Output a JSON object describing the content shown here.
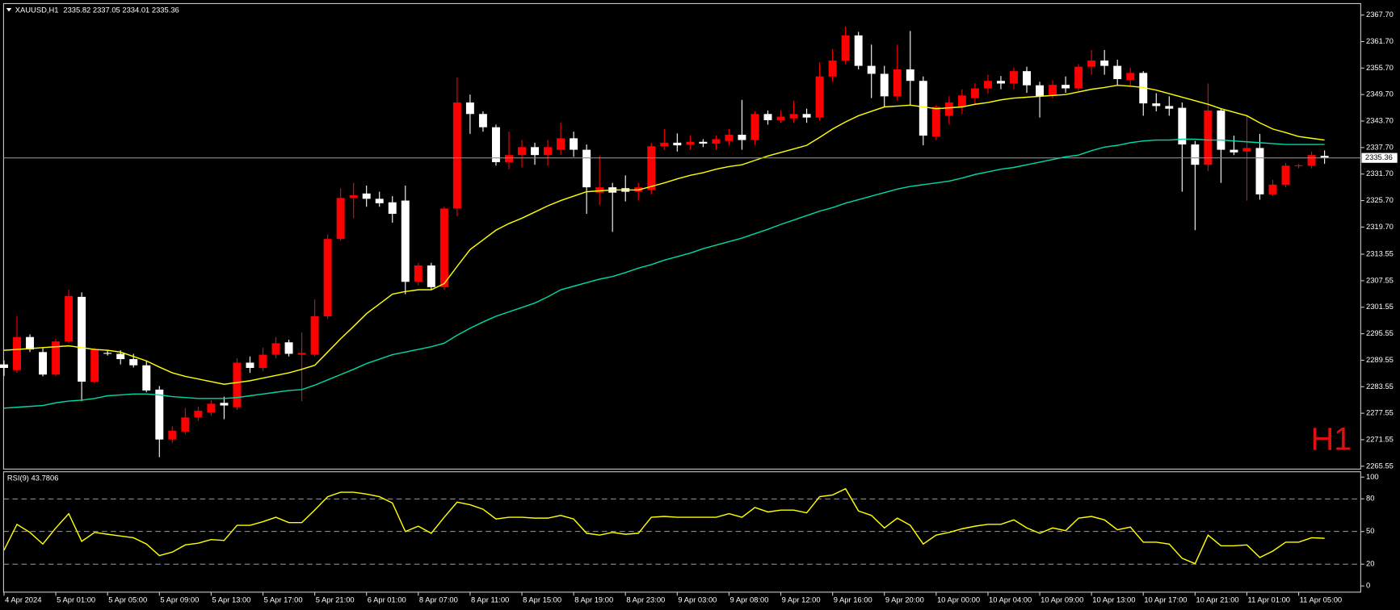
{
  "chart_data": [
    {
      "type": "candlestick",
      "title": "XAUUSD,H1",
      "timeframe": "H1",
      "categories": [
        "4 Apr 2024",
        null,
        null,
        null,
        "5 Apr 01:00",
        null,
        null,
        null,
        "5 Apr 05:00",
        null,
        null,
        null,
        "5 Apr 09:00",
        null,
        null,
        null,
        "5 Apr 13:00",
        null,
        null,
        null,
        "5 Apr 17:00",
        null,
        null,
        null,
        "5 Apr 21:00",
        null,
        null,
        null,
        "6 Apr 01:00",
        null,
        null,
        null,
        "8 Apr 07:00",
        null,
        null,
        null,
        "8 Apr 11:00",
        null,
        null,
        null,
        "8 Apr 15:00",
        null,
        null,
        null,
        "8 Apr 19:00",
        null,
        null,
        null,
        "8 Apr 23:00",
        null,
        null,
        null,
        "9 Apr 03:00",
        null,
        null,
        null,
        "9 Apr 08:00",
        null,
        null,
        null,
        "9 Apr 12:00",
        null,
        null,
        null,
        "9 Apr 16:00",
        null,
        null,
        null,
        "9 Apr 20:00",
        null,
        null,
        null,
        "10 Apr 00:00",
        null,
        null,
        null,
        "10 Apr 04:00",
        null,
        null,
        null,
        "10 Apr 09:00",
        null,
        null,
        null,
        "10 Apr 13:00",
        null,
        null,
        null,
        "10 Apr 17:00",
        null,
        null,
        null,
        "10 Apr 21:00",
        null,
        null,
        null,
        "11 Apr 01:00",
        null,
        null,
        null,
        "11 Apr 05:00",
        null,
        null
      ],
      "open": [
        2288.6,
        2287.3,
        2294.8,
        2291.4,
        2286.3,
        2293.8,
        2303.9,
        2284.7,
        2291.2,
        2291.0,
        2289.8,
        2288.4,
        2282.9,
        2271.6,
        2273.4,
        2276.6,
        2277.7,
        2279.9,
        2278.9,
        2289.0,
        2287.8,
        2290.8,
        2293.6,
        2290.8,
        2290.8,
        2299.5,
        2317.0,
        2326.3,
        2327.3,
        2326.1,
        2325.3,
        2325.7,
        2307.3,
        2311.0,
        2306.1,
        2323.9,
        2347.9,
        2345.3,
        2342.3,
        2334.4,
        2336.0,
        2337.8,
        2336.0,
        2337.2,
        2339.8,
        2337.2,
        2327.5,
        2328.7,
        2328.5,
        2327.7,
        2328.1,
        2338.0,
        2338.8,
        2338.4,
        2339.0,
        2338.6,
        2339.2,
        2340.6,
        2339.4,
        2345.3,
        2343.9,
        2344.3,
        2345.3,
        2344.5,
        2353.8,
        2357.4,
        2363.1,
        2356.2,
        2354.4,
        2349.3,
        2355.4,
        2352.8,
        2340.2,
        2344.9,
        2346.9,
        2348.9,
        2351.1,
        2352.8,
        2352.2,
        2355.0,
        2351.8,
        2349.5,
        2351.9,
        2351.1,
        2356.0,
        2357.4,
        2356.2,
        2353.0,
        2354.6,
        2347.7,
        2347.1,
        2346.7,
        2338.4,
        2333.8,
        2346.1,
        2337.2,
        2336.8,
        2337.6,
        2327.1,
        2329.3,
        2333.6,
        2333.6,
        2335.82
      ],
      "high": [
        2289.5,
        2299.5,
        2295.4,
        2292.4,
        2294.4,
        2305.5,
        2304.9,
        2292.4,
        2291.8,
        2291.8,
        2291.0,
        2289.4,
        2283.7,
        2274.6,
        2278.7,
        2279.1,
        2280.5,
        2281.3,
        2290.0,
        2290.4,
        2292.4,
        2294.8,
        2294.2,
        2295.8,
        2303.3,
        2318.0,
        2328.5,
        2329.7,
        2329.1,
        2327.7,
        2326.7,
        2329.1,
        2311.6,
        2311.6,
        2324.3,
        2353.6,
        2349.7,
        2345.9,
        2342.9,
        2341.3,
        2339.4,
        2338.8,
        2339.4,
        2343.3,
        2341.3,
        2338.4,
        2335.8,
        2329.7,
        2331.4,
        2329.7,
        2338.8,
        2341.9,
        2340.9,
        2340.4,
        2339.6,
        2340.4,
        2341.9,
        2348.5,
        2345.9,
        2346.1,
        2346.1,
        2348.3,
        2346.5,
        2357.0,
        2360.0,
        2365.1,
        2363.9,
        2361.0,
        2356.2,
        2361.0,
        2364.1,
        2353.8,
        2347.3,
        2349.3,
        2350.9,
        2352.3,
        2354.2,
        2353.9,
        2355.8,
        2356.0,
        2352.6,
        2352.9,
        2353.8,
        2356.6,
        2359.8,
        2359.8,
        2357.6,
        2355.8,
        2355.0,
        2350.0,
        2349.3,
        2347.9,
        2339.2,
        2352.2,
        2346.5,
        2340.4,
        2344.9,
        2340.8,
        2330.4,
        2334.2,
        2334.0,
        2336.8,
        2337.05
      ],
      "low": [
        2286.0,
        2286.7,
        2291.4,
        2285.9,
        2285.9,
        2293.4,
        2280.3,
        2284.3,
        2290.6,
        2288.6,
        2287.9,
        2282.3,
        2267.6,
        2270.8,
        2272.8,
        2275.8,
        2277.0,
        2276.2,
        2278.3,
        2286.7,
        2287.1,
        2290.0,
        2290.4,
        2280.3,
        2290.4,
        2298.9,
        2316.6,
        2321.7,
        2324.3,
        2324.3,
        2320.7,
        2304.5,
        2306.5,
        2305.5,
        2305.5,
        2322.1,
        2340.8,
        2341.3,
        2333.6,
        2332.8,
        2333.2,
        2333.8,
        2333.6,
        2336.0,
        2335.6,
        2322.7,
        2324.7,
        2318.6,
        2325.5,
        2325.7,
        2327.1,
        2337.2,
        2336.8,
        2337.2,
        2337.8,
        2337.2,
        2338.2,
        2337.2,
        2338.4,
        2342.9,
        2343.3,
        2343.3,
        2343.3,
        2343.9,
        2352.6,
        2356.6,
        2355.4,
        2348.9,
        2346.9,
        2348.3,
        2347.3,
        2338.2,
        2339.4,
        2342.9,
        2345.3,
        2347.3,
        2349.9,
        2350.9,
        2350.9,
        2350.1,
        2344.5,
        2348.9,
        2350.1,
        2350.5,
        2354.2,
        2354.2,
        2351.9,
        2351.7,
        2344.9,
        2345.9,
        2344.9,
        2327.7,
        2319.0,
        2332.4,
        2329.7,
        2336.0,
        2325.7,
        2325.9,
        2326.7,
        2328.7,
        2333.0,
        2333.0,
        2334.01
      ],
      "close": [
        2287.8,
        2294.8,
        2292.0,
        2286.3,
        2293.8,
        2304.1,
        2284.7,
        2292.0,
        2291.0,
        2289.8,
        2288.4,
        2282.7,
        2271.6,
        2273.6,
        2276.6,
        2278.1,
        2279.7,
        2279.3,
        2289.0,
        2287.8,
        2290.8,
        2293.4,
        2291.0,
        2291.2,
        2299.5,
        2317.0,
        2326.3,
        2326.9,
        2326.1,
        2325.1,
        2322.7,
        2307.3,
        2311.0,
        2306.1,
        2323.9,
        2347.9,
        2345.3,
        2342.3,
        2334.4,
        2336.0,
        2337.8,
        2336.0,
        2337.8,
        2339.8,
        2337.2,
        2328.7,
        2328.7,
        2327.5,
        2327.7,
        2328.7,
        2338.0,
        2338.8,
        2338.2,
        2339.0,
        2338.6,
        2339.6,
        2340.6,
        2339.4,
        2345.3,
        2343.9,
        2344.7,
        2345.3,
        2344.5,
        2353.8,
        2357.4,
        2363.1,
        2356.2,
        2354.4,
        2349.3,
        2355.4,
        2352.8,
        2340.4,
        2346.9,
        2347.9,
        2349.5,
        2351.1,
        2352.8,
        2352.2,
        2355.0,
        2351.8,
        2349.3,
        2351.9,
        2351.1,
        2356.0,
        2357.4,
        2356.2,
        2353.2,
        2354.6,
        2347.7,
        2347.1,
        2346.5,
        2338.4,
        2333.8,
        2346.1,
        2337.2,
        2336.6,
        2337.6,
        2327.1,
        2329.3,
        2333.6,
        2333.7,
        2336.0,
        2335.36
      ],
      "up_color": "#ff0000",
      "down_color": "#ffffff",
      "overlays": [
        {
          "color": "#ffff00",
          "values": [
            2291.8,
            2292.0,
            2292.2,
            2292.4,
            2292.6,
            2292.8,
            2292.4,
            2292.0,
            2291.8,
            2291.4,
            2290.4,
            2289.4,
            2288.0,
            2286.7,
            2285.9,
            2285.3,
            2284.7,
            2284.1,
            2284.5,
            2284.9,
            2285.5,
            2286.1,
            2286.7,
            2287.5,
            2288.4,
            2291.4,
            2294.4,
            2297.2,
            2300.1,
            2302.3,
            2304.5,
            2305.1,
            2305.5,
            2305.5,
            2306.9,
            2310.8,
            2314.6,
            2316.8,
            2319.0,
            2320.5,
            2321.7,
            2323.1,
            2324.5,
            2325.7,
            2326.7,
            2327.7,
            2327.9,
            2328.1,
            2328.1,
            2328.1,
            2328.9,
            2329.7,
            2330.6,
            2331.4,
            2332.0,
            2332.8,
            2333.4,
            2333.8,
            2334.8,
            2335.8,
            2336.6,
            2337.4,
            2338.2,
            2340.0,
            2341.9,
            2343.5,
            2344.9,
            2345.9,
            2346.9,
            2347.1,
            2347.3,
            2346.9,
            2346.5,
            2346.7,
            2346.9,
            2347.5,
            2347.9,
            2348.5,
            2348.9,
            2349.1,
            2349.3,
            2349.5,
            2349.7,
            2350.3,
            2350.9,
            2351.3,
            2351.8,
            2351.6,
            2351.3,
            2350.7,
            2349.9,
            2349.1,
            2348.3,
            2347.5,
            2346.5,
            2345.7,
            2344.9,
            2343.3,
            2341.9,
            2341.1,
            2340.2,
            2339.8,
            2339.4
          ]
        },
        {
          "color": "#00d9a6",
          "values": [
            2278.7,
            2278.9,
            2279.1,
            2279.3,
            2279.9,
            2280.3,
            2280.5,
            2280.9,
            2281.5,
            2281.7,
            2281.9,
            2281.9,
            2281.7,
            2281.3,
            2281.1,
            2280.9,
            2280.9,
            2280.9,
            2281.1,
            2281.5,
            2281.9,
            2282.3,
            2282.7,
            2282.9,
            2283.9,
            2285.1,
            2286.3,
            2287.5,
            2288.8,
            2289.8,
            2290.8,
            2291.4,
            2292.0,
            2292.6,
            2293.4,
            2295.2,
            2296.8,
            2298.2,
            2299.5,
            2300.5,
            2301.5,
            2302.5,
            2303.9,
            2305.5,
            2306.3,
            2307.1,
            2307.9,
            2308.5,
            2309.4,
            2310.4,
            2311.2,
            2312.2,
            2313.0,
            2313.8,
            2314.8,
            2315.6,
            2316.4,
            2317.2,
            2318.2,
            2319.2,
            2320.3,
            2321.3,
            2322.3,
            2323.3,
            2324.1,
            2325.1,
            2325.9,
            2326.7,
            2327.5,
            2328.3,
            2328.9,
            2329.3,
            2329.7,
            2330.1,
            2330.8,
            2331.6,
            2332.2,
            2332.8,
            2333.2,
            2333.8,
            2334.4,
            2335.0,
            2335.6,
            2336.0,
            2337.0,
            2337.8,
            2338.2,
            2338.8,
            2339.2,
            2339.4,
            2339.4,
            2339.6,
            2339.6,
            2339.4,
            2339.4,
            2339.2,
            2339.0,
            2338.8,
            2338.6,
            2338.4,
            2338.4,
            2338.4,
            2338.4
          ]
        }
      ],
      "ylim": [
        2264.9,
        2370.3
      ],
      "yticks": [
        {
          "value": 2367.7,
          "label": "2367.70"
        },
        {
          "value": 2361.7,
          "label": "2361.70"
        },
        {
          "value": 2355.7,
          "label": "2355.70"
        },
        {
          "value": 2349.7,
          "label": "2349.70"
        },
        {
          "value": 2343.7,
          "label": "2343.70"
        },
        {
          "value": 2337.7,
          "label": "2337.70"
        },
        {
          "value": 2331.7,
          "label": "2331.70"
        },
        {
          "value": 2325.7,
          "label": "2325.70"
        },
        {
          "value": 2319.7,
          "label": "2319.70"
        },
        2313.55,
        2307.55,
        2301.55,
        2295.55,
        2289.55,
        2283.55,
        2277.55,
        2271.55,
        2265.55
      ],
      "price_line": true,
      "price_line_color": "#8c8c8c"
    },
    {
      "type": "line",
      "title": "RSI(9)",
      "color": "#ffff00",
      "values": [
        32.8,
        56.6,
        49.2,
        38.5,
        53.3,
        66.4,
        41.0,
        49.2,
        47.5,
        45.9,
        44.3,
        38.5,
        27.9,
        31.1,
        37.7,
        39.3,
        42.6,
        41.8,
        55.7,
        55.7,
        59.0,
        63.1,
        58.2,
        58.2,
        69.7,
        82.0,
        86.1,
        86.1,
        84.4,
        82.0,
        76.2,
        50.0,
        54.9,
        48.4,
        63.1,
        77.0,
        74.6,
        70.5,
        61.5,
        63.1,
        63.1,
        62.3,
        62.3,
        64.8,
        61.5,
        48.4,
        46.7,
        49.2,
        47.5,
        48.4,
        63.1,
        63.9,
        63.1,
        63.1,
        63.1,
        63.1,
        66.4,
        63.1,
        72.1,
        68.0,
        69.7,
        69.7,
        67.2,
        82.0,
        83.6,
        89.3,
        68.9,
        64.8,
        53.3,
        62.3,
        55.7,
        38.5,
        46.7,
        49.2,
        52.5,
        54.9,
        56.6,
        56.6,
        60.7,
        53.3,
        48.4,
        53.3,
        50.8,
        62.3,
        63.9,
        60.7,
        51.6,
        54.1,
        40.2,
        40.2,
        38.5,
        25.4,
        20.5,
        46.7,
        36.9,
        36.9,
        37.7,
        26.2,
        32.0,
        40.2,
        40.2,
        44.3,
        43.7806
      ],
      "ylim": [
        -5.7,
        104.9
      ],
      "yticks": [
        0,
        20,
        50,
        80,
        100
      ],
      "levels": [
        20,
        50,
        80
      ],
      "level_color": "#b4b4b4"
    }
  ]
}
